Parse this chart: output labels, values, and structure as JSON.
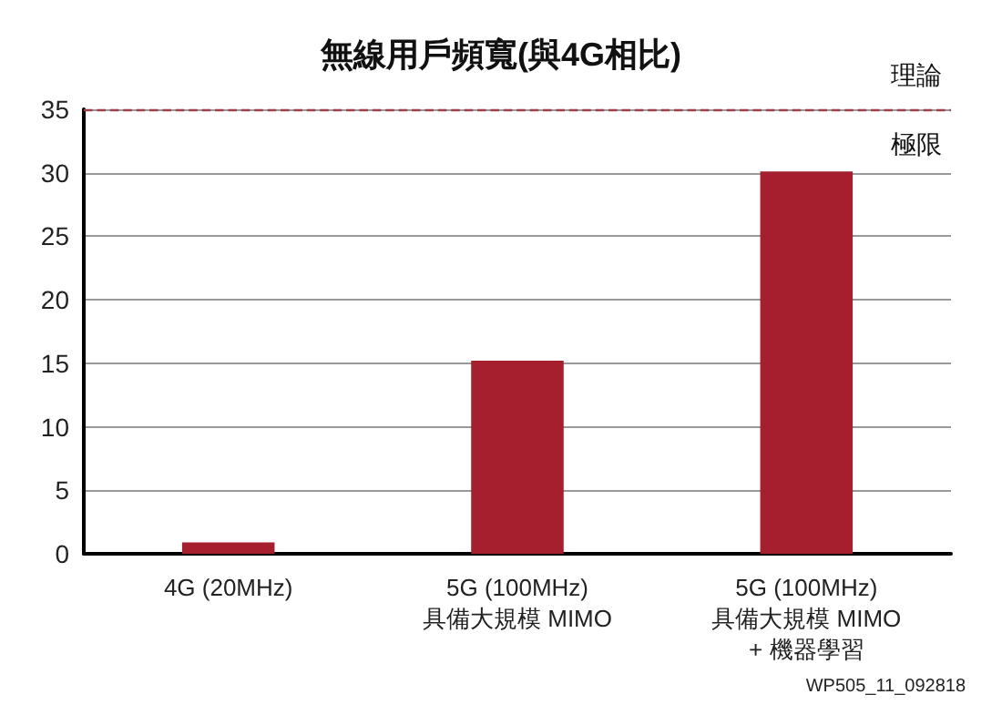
{
  "chart_data": {
    "type": "bar",
    "title": "無線用戶頻寬(與4G相比)",
    "categories": [
      "4G (20MHz)",
      "5G (100MHz)\n具備大規模 MIMO",
      "5G (100MHz)\n具備大規模 MIMO\n+ 機器學習"
    ],
    "values": [
      0.9,
      15.2,
      30.1
    ],
    "color": "#a51f2e",
    "ylim": [
      0,
      35
    ],
    "yticks": [
      0,
      5,
      10,
      15,
      20,
      25,
      30,
      35
    ],
    "grid": "y",
    "ref_lines": [
      {
        "axis": "y",
        "value": 35,
        "label": "理論極限",
        "color": "#a0404a",
        "line_style": "dashed"
      }
    ],
    "annotations": [
      "WP505_11_092818"
    ]
  }
}
